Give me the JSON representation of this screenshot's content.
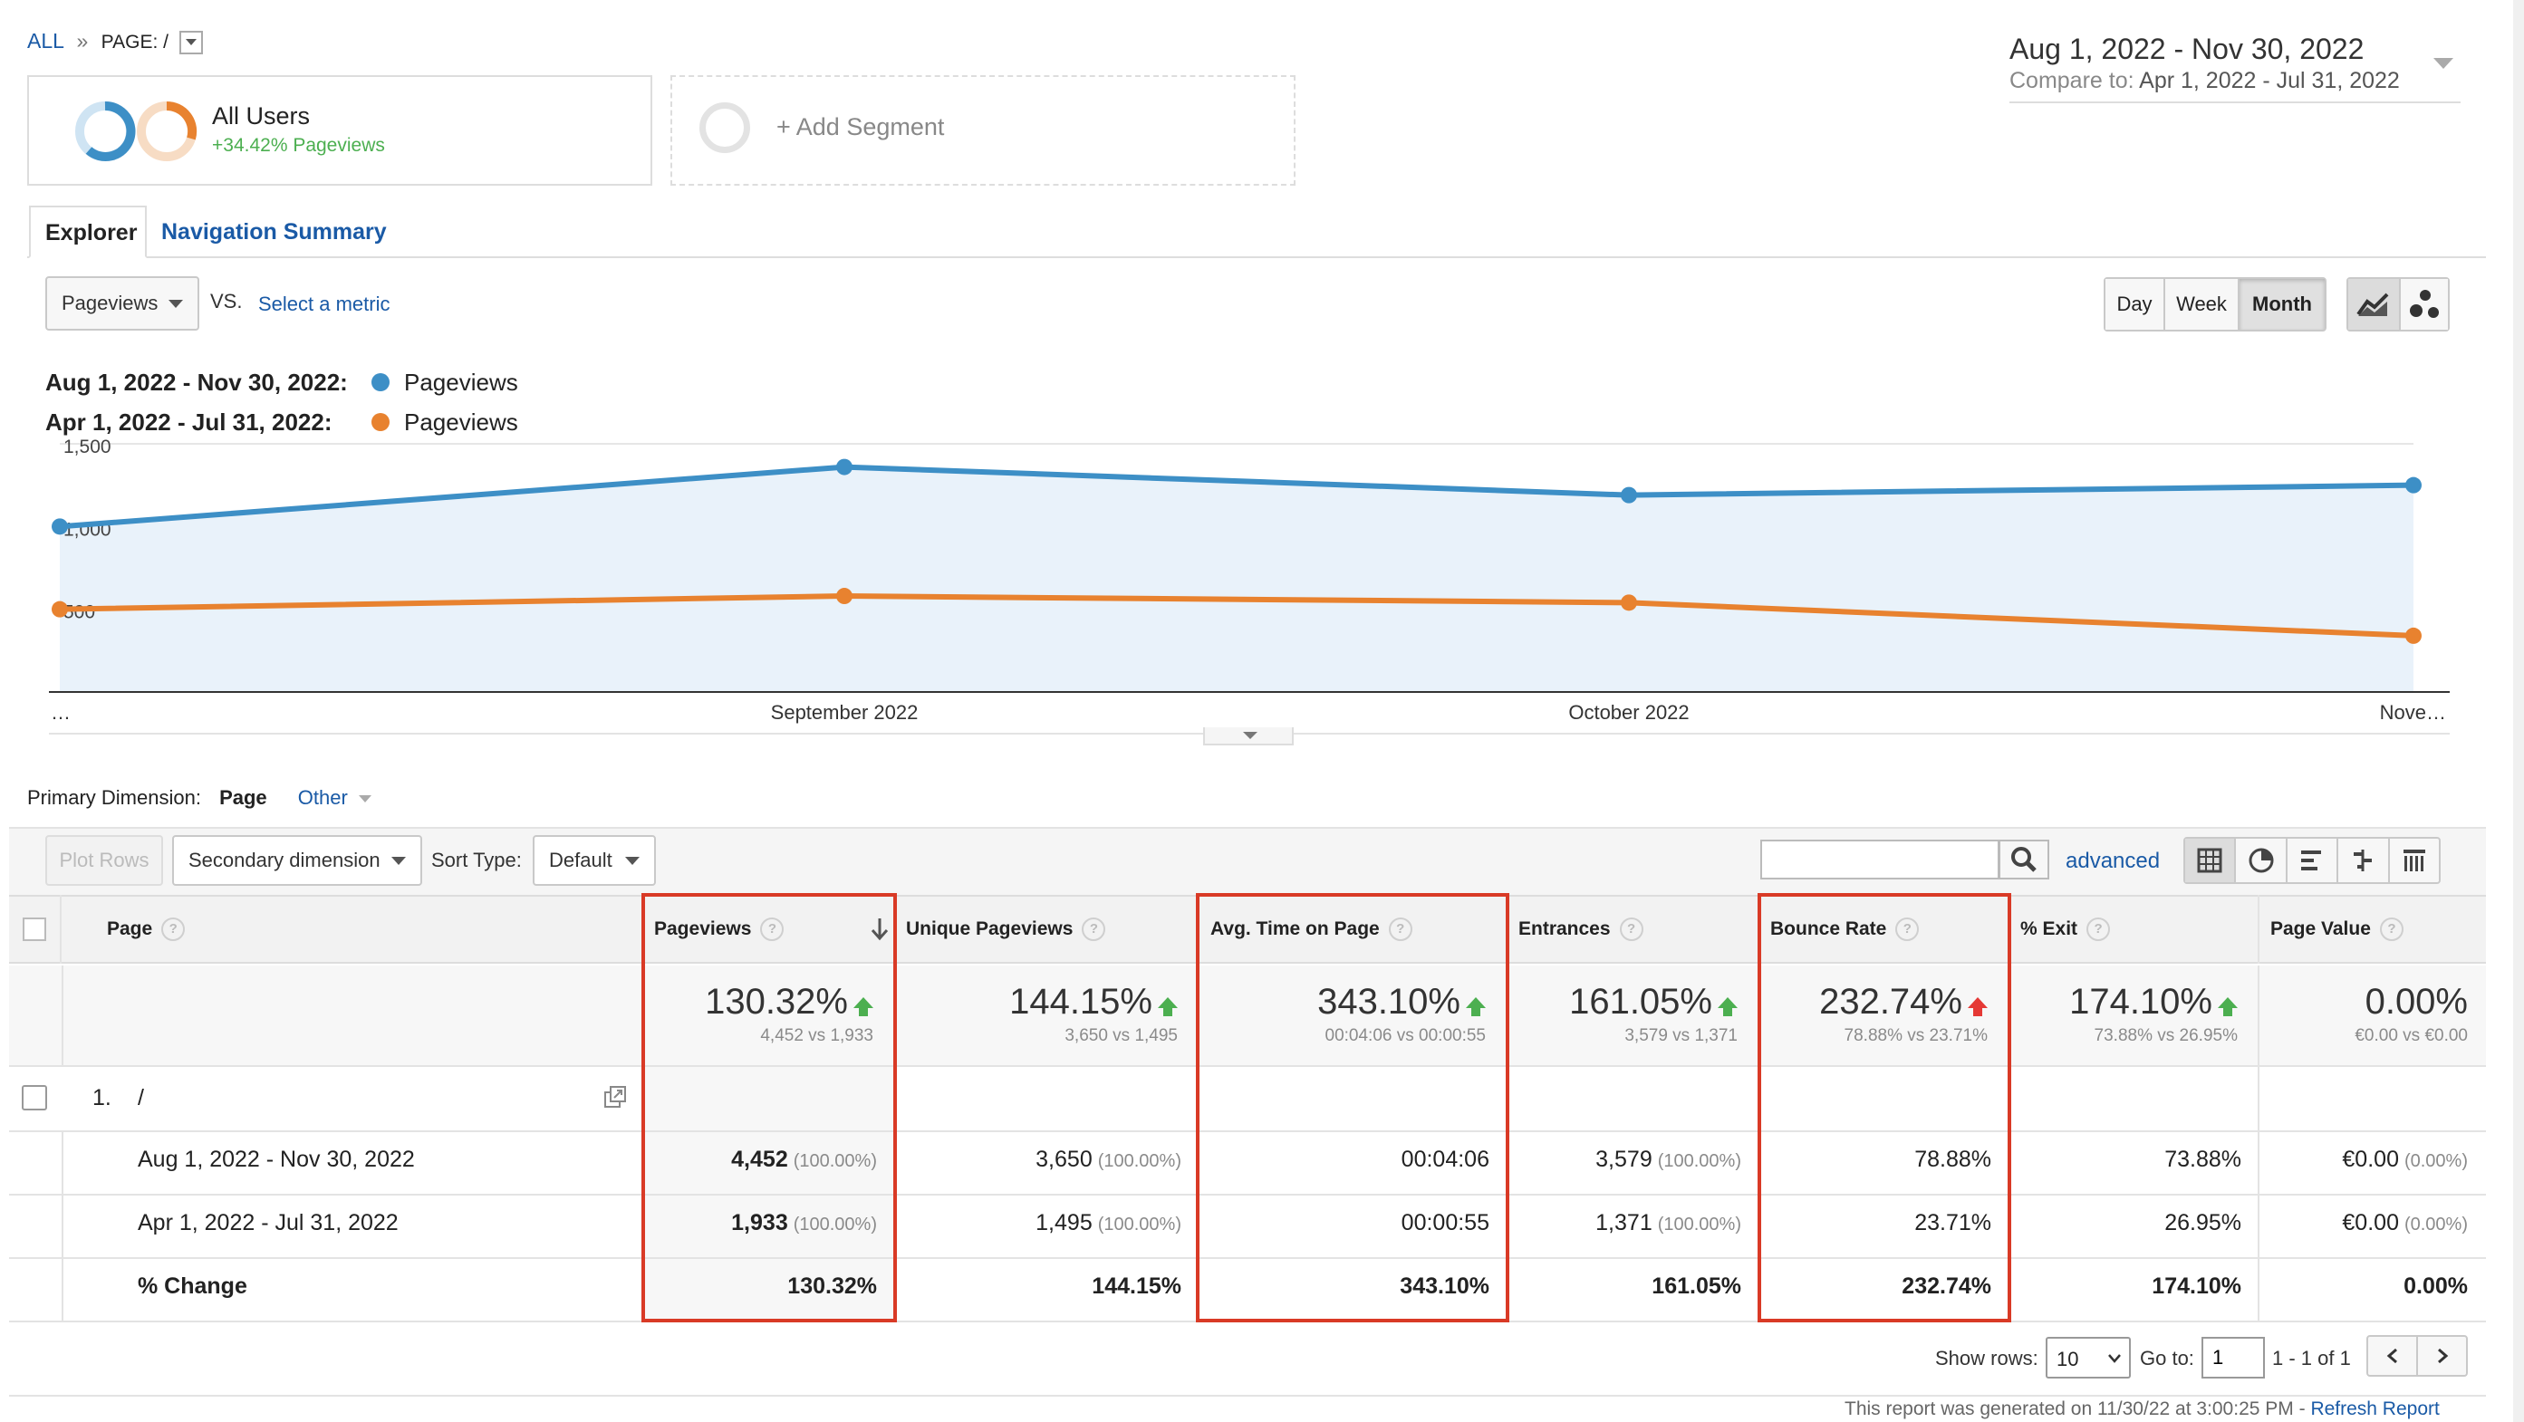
{
  "breadcrumb": {
    "all": "ALL",
    "sep": "»",
    "page": "PAGE: /"
  },
  "date_range": {
    "main": "Aug 1, 2022 - Nov 30, 2022",
    "compare_label": "Compare to:",
    "compare": "Apr 1, 2022 - Jul 31, 2022"
  },
  "segment": {
    "name": "All Users",
    "stat": "+34.42% Pageviews",
    "add": "+ Add Segment"
  },
  "tabs": {
    "explorer": "Explorer",
    "nav_summary": "Navigation Summary"
  },
  "metric": {
    "selected": "Pageviews",
    "vs": "VS.",
    "select": "Select a metric"
  },
  "granularity": {
    "day": "Day",
    "week": "Week",
    "month": "Month",
    "active": "Month"
  },
  "legend": [
    {
      "range": "Aug 1, 2022 - Nov 30, 2022:",
      "name": "Pageviews",
      "color": "#3d8fc6"
    },
    {
      "range": "Apr 1, 2022 - Jul 31, 2022:",
      "name": "Pageviews",
      "color": "#e8822f"
    }
  ],
  "chart_data": {
    "type": "line",
    "x": [
      "…",
      "September 2022",
      "October 2022",
      "Nove…"
    ],
    "yticks": [
      "1,500",
      "1,000",
      "500"
    ],
    "ylim": [
      0,
      1500
    ],
    "series": [
      {
        "name": "Pageviews",
        "values": [
          1000,
          1360,
          1190,
          1250
        ],
        "color": "#3d8fc6"
      },
      {
        "name": "Pageviews",
        "values": [
          500,
          580,
          540,
          340
        ],
        "color": "#e8822f"
      }
    ]
  },
  "primary_dimension": {
    "label": "Primary Dimension:",
    "page": "Page",
    "other": "Other"
  },
  "toolbar": {
    "plot_rows": "Plot Rows",
    "secondary": "Secondary dimension",
    "sort_label": "Sort Type:",
    "sort_value": "Default",
    "search_placeholder": "",
    "advanced": "advanced"
  },
  "table": {
    "headers": {
      "page": "Page",
      "pageviews": "Pageviews",
      "unique": "Unique Pageviews",
      "avg_time": "Avg. Time on Page",
      "entrances": "Entrances",
      "bounce": "Bounce Rate",
      "exit": "% Exit",
      "value": "Page Value"
    },
    "summary": {
      "pageviews": {
        "big": "130.32%",
        "small": "4,452 vs 1,933"
      },
      "unique": {
        "big": "144.15%",
        "small": "3,650 vs 1,495"
      },
      "avg_time": {
        "big": "343.10%",
        "small": "00:04:06 vs 00:00:55"
      },
      "entrances": {
        "big": "161.05%",
        "small": "3,579 vs 1,371"
      },
      "bounce": {
        "big": "232.74%",
        "small": "78.88% vs 23.71%"
      },
      "exit": {
        "big": "174.10%",
        "small": "73.88% vs 26.95%"
      },
      "value": {
        "big": "0.00%",
        "small": "€0.00 vs €0.00"
      }
    },
    "row": {
      "index": "1.",
      "page": "/"
    },
    "sub_rows": [
      {
        "label": "Aug 1, 2022 - Nov 30, 2022",
        "pageviews": "4,452",
        "pageviews_pct": "(100.00%)",
        "unique": "3,650",
        "unique_pct": "(100.00%)",
        "avg_time": "00:04:06",
        "entrances": "3,579",
        "entrances_pct": "(100.00%)",
        "bounce": "78.88%",
        "exit": "73.88%",
        "value": "€0.00",
        "value_pct": "(0.00%)"
      },
      {
        "label": "Apr 1, 2022 - Jul 31, 2022",
        "pageviews": "1,933",
        "pageviews_pct": "(100.00%)",
        "unique": "1,495",
        "unique_pct": "(100.00%)",
        "avg_time": "00:00:55",
        "entrances": "1,371",
        "entrances_pct": "(100.00%)",
        "bounce": "23.71%",
        "exit": "26.95%",
        "value": "€0.00",
        "value_pct": "(0.00%)"
      },
      {
        "label": "% Change",
        "pageviews": "130.32%",
        "unique": "144.15%",
        "avg_time": "343.10%",
        "entrances": "161.05%",
        "bounce": "232.74%",
        "exit": "174.10%",
        "value": "0.00%"
      }
    ]
  },
  "pagination": {
    "show_rows_label": "Show rows:",
    "rows": "10",
    "goto_label": "Go to:",
    "goto": "1",
    "range": "1 - 1 of 1"
  },
  "footer": {
    "generated": "This report was generated on 11/30/22 at 3:00:25 PM -",
    "refresh": "Refresh Report"
  }
}
